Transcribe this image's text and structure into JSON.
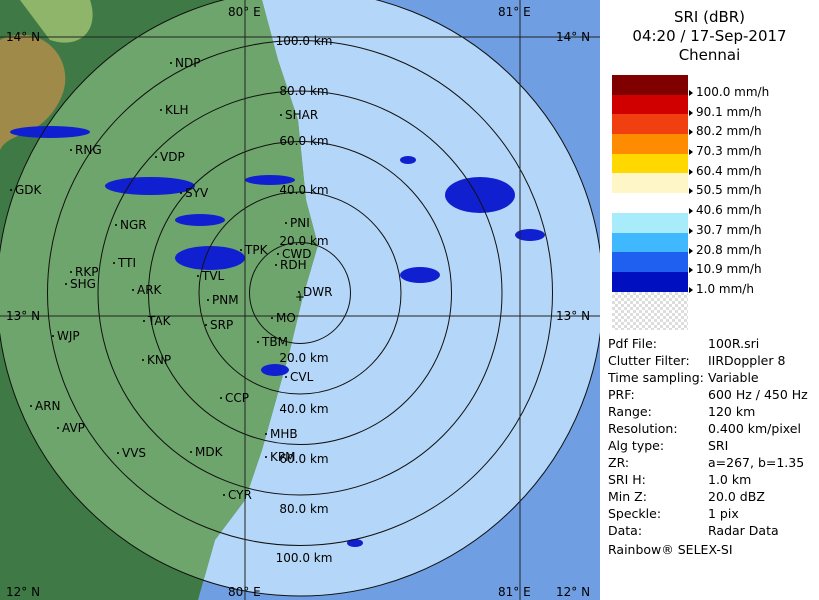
{
  "header": {
    "product": "SRI (dBR)",
    "time": "04:20 / 17-Sep-2017",
    "site": "Chennai"
  },
  "legend": [
    {
      "label": "100.0 mm/h",
      "color": "#800000"
    },
    {
      "label": "90.1 mm/h",
      "color": "#d00000"
    },
    {
      "label": "80.2 mm/h",
      "color": "#f04010"
    },
    {
      "label": "70.3 mm/h",
      "color": "#ff8c00"
    },
    {
      "label": "60.4 mm/h",
      "color": "#ffd800"
    },
    {
      "label": "50.5 mm/h",
      "color": "#fff6c8"
    },
    {
      "label": "40.6 mm/h",
      "color": "#ffffff"
    },
    {
      "label": "30.7 mm/h",
      "color": "#a8ecfc"
    },
    {
      "label": "20.8 mm/h",
      "color": "#40b8ff"
    },
    {
      "label": "10.9 mm/h",
      "color": "#2060f0"
    },
    {
      "label": "1.0 mm/h",
      "color": "#0010c0"
    }
  ],
  "info": [
    [
      "Pdf File:",
      "100R.sri"
    ],
    [
      "Clutter Filter:",
      "IIRDoppler 8"
    ],
    [
      "Time sampling:",
      "Variable"
    ],
    [
      "PRF:",
      "600 Hz / 450 Hz"
    ],
    [
      "Range:",
      "120 km"
    ],
    [
      "Resolution:",
      "0.400 km/pixel"
    ],
    [
      "Alg type:",
      "SRI"
    ],
    [
      "ZR:",
      "a=267, b=1.35"
    ],
    [
      "SRI H:",
      "1.0 km"
    ],
    [
      "Min Z:",
      "20.0 dBZ"
    ],
    [
      "Speckle:",
      "1 pix"
    ],
    [
      "Data:",
      "Radar Data"
    ]
  ],
  "footer": "Rainbow® SELEX-SI",
  "map": {
    "grid_labels": [
      "14° N",
      "14° N",
      "80° E",
      "81° E",
      "13° N",
      "13° N",
      "12° N",
      "12° N",
      "80° E",
      "81° E"
    ],
    "range_labels": [
      "20.0 km",
      "40.0 km",
      "60.0 km",
      "80.0 km",
      "100.0 km",
      "20.0 km",
      "40.0 km",
      "60.0 km",
      "80.0 km",
      "100.0 km"
    ],
    "places": [
      "NDP",
      "KLH",
      "SHAR",
      "RNG",
      "VDP",
      "GDK",
      "SYV",
      "NGR",
      "PNI",
      "TPK",
      "CWD",
      "RDH",
      "RKP",
      "TTI",
      "SHG",
      "ARK",
      "TVL",
      "PNM",
      "DWR",
      "TAK",
      "WJP",
      "SRP",
      "MO",
      "TBM",
      "KNP",
      "CVL",
      "ARN",
      "AVP",
      "CCP",
      "MHB",
      "VVS",
      "MDK",
      "KPM",
      "CYR"
    ]
  }
}
